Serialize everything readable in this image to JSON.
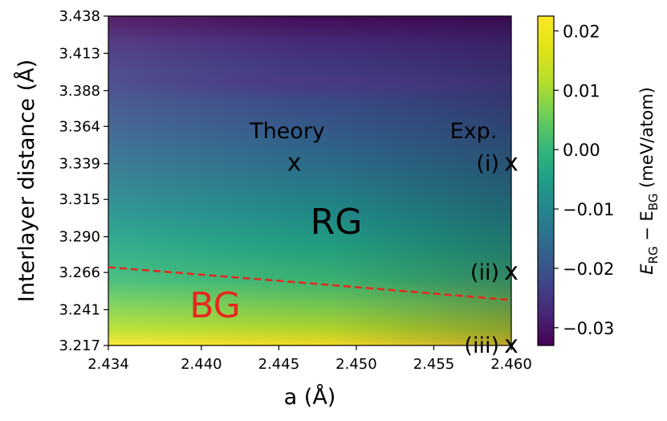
{
  "chart_data": {
    "type": "heatmap",
    "title": "",
    "xlabel": "a (Å)",
    "ylabel": "Interlayer distance (Å)",
    "xlim": [
      2.434,
      2.46
    ],
    "ylim": [
      3.217,
      3.438
    ],
    "x_ticks": [
      "2.434",
      "2.440",
      "2.445",
      "2.450",
      "2.455",
      "2.460"
    ],
    "x_tick_values": [
      2.434,
      2.44,
      2.445,
      2.45,
      2.455,
      2.46
    ],
    "y_ticks": [
      "3.217",
      "3.241",
      "3.266",
      "3.290",
      "3.315",
      "3.339",
      "3.364",
      "3.388",
      "3.413",
      "3.438"
    ],
    "y_tick_values": [
      3.217,
      3.241,
      3.266,
      3.29,
      3.315,
      3.339,
      3.364,
      3.388,
      3.413,
      3.438
    ],
    "colorbar": {
      "colormap": "viridis",
      "vmin": -0.033,
      "vmax": 0.0225,
      "ticks": [
        "0.02",
        "0.01",
        "0.00",
        "−0.01",
        "−0.02",
        "−0.03"
      ],
      "tick_values": [
        0.02,
        0.01,
        0.0,
        -0.01,
        -0.02,
        -0.03
      ],
      "label_main": "E",
      "label_sub1": "RG",
      "label_mid": " − E",
      "label_sub2": "BG",
      "label_unit": " (meV/atom)"
    },
    "boundary_line": {
      "style": "dashed",
      "color": "#e8261e",
      "points": [
        [
          2.434,
          3.2695
        ],
        [
          2.447,
          3.2587
        ],
        [
          2.46,
          3.2475
        ]
      ]
    },
    "annotations": {
      "theory_label": "Theory",
      "theory_marker": "x",
      "theory_point": [
        2.446,
        3.339
      ],
      "exp_label": "Exp.",
      "exp_points": [
        {
          "label": "(i)",
          "marker": "x",
          "x": 2.46,
          "y": 3.339
        },
        {
          "label": "(ii)",
          "marker": "x",
          "x": 2.46,
          "y": 3.266
        },
        {
          "label": "(iii)",
          "marker": "x",
          "x": 2.46,
          "y": 3.217
        }
      ],
      "region_rg": "RG",
      "region_bg": "BG",
      "region_bg_color": "#e8261e"
    }
  }
}
